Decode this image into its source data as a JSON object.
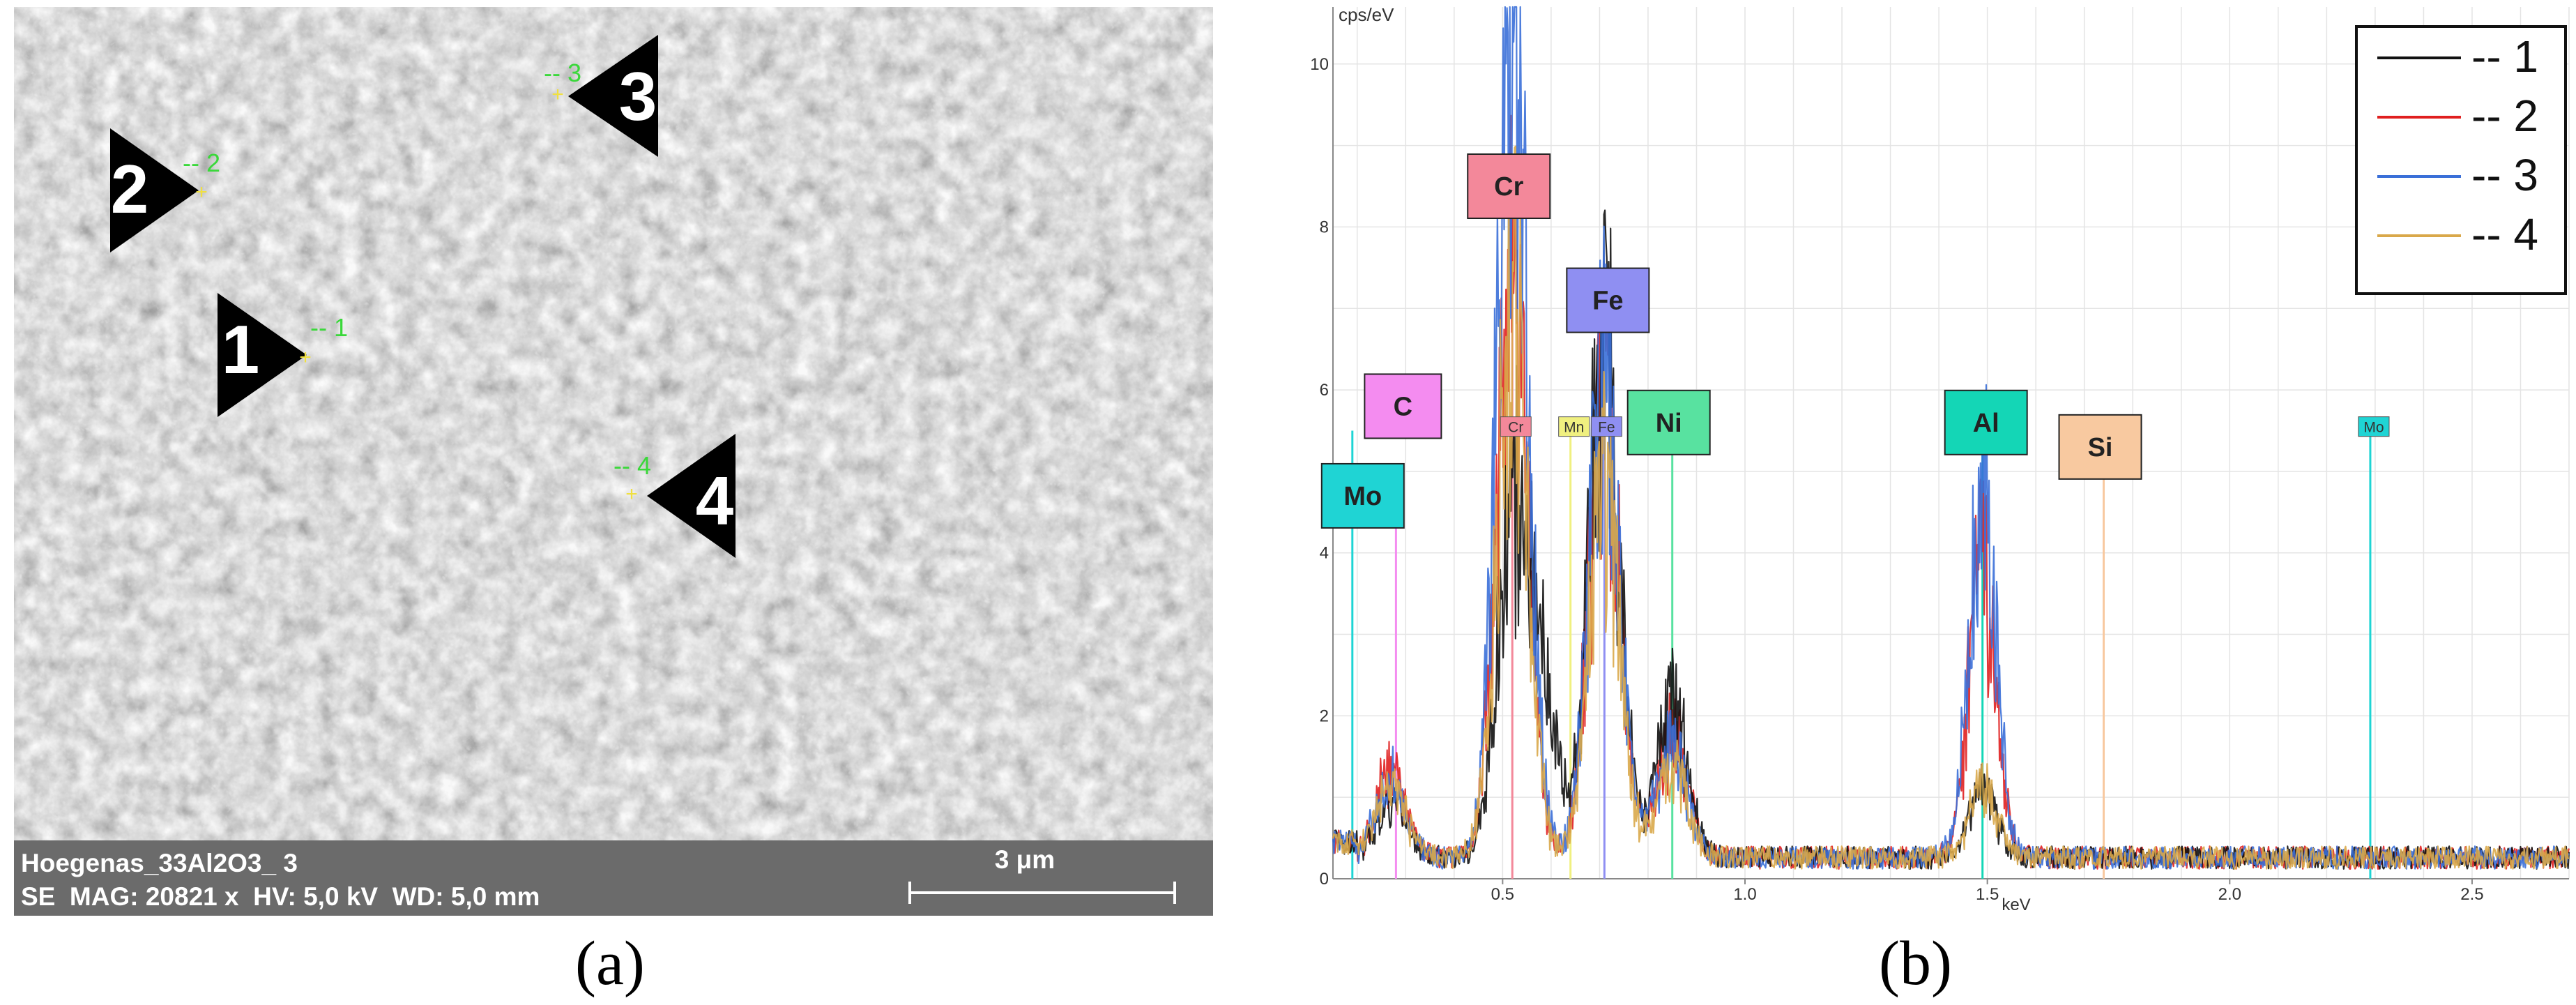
{
  "sem_panel": {
    "sample_name": "Hoegenas_33Al2O3_ 3",
    "info_line": "SE  MAG: 20821 x  HV: 5,0 kV  WD: 5,0 mm",
    "scalebar_label": "3 μm",
    "markers": [
      {
        "label": "1",
        "tag": "-- 1"
      },
      {
        "label": "2",
        "tag": "-- 2"
      },
      {
        "label": "3",
        "tag": "-- 3"
      },
      {
        "label": "4",
        "tag": "-- 4"
      }
    ]
  },
  "captions": {
    "a": "(a)",
    "b": "(b)"
  },
  "colors": {
    "s1": "#111111",
    "s2": "#e02020",
    "s3": "#3a6fd8",
    "s4": "#d9a84a",
    "Cr": "#f3889a",
    "Fe": "#8f8ff2",
    "Ni": "#58e2a0",
    "C": "#f48cf0",
    "Mo": "#1fd4d4",
    "Al": "#14d6b6",
    "Si": "#f8c9a0",
    "Mn": "#f0f080"
  },
  "chart_data": {
    "type": "line",
    "title": "",
    "xlabel": "keV",
    "ylabel": "cps/eV",
    "xlim": [
      0.15,
      2.7
    ],
    "ylim": [
      0,
      10.7
    ],
    "xticks": [
      "0.5",
      "1.0",
      "1.5",
      "2.0",
      "2.5"
    ],
    "yticks": [
      "0",
      "2",
      "4",
      "6",
      "8",
      "10"
    ],
    "grid": true,
    "legend_position": "top-right",
    "series": [
      {
        "name": "-- 1",
        "color": "#111111",
        "peaks": [
          [
            0.27,
            0.75
          ],
          [
            0.52,
            4.3
          ],
          [
            0.58,
            2.3
          ],
          [
            0.71,
            6.7
          ],
          [
            0.85,
            2.0
          ],
          [
            1.49,
            0.95
          ]
        ]
      },
      {
        "name": "-- 2",
        "color": "#e02020",
        "peaks": [
          [
            0.27,
            1.1
          ],
          [
            0.52,
            7.6
          ],
          [
            0.71,
            6.0
          ],
          [
            0.85,
            1.6
          ],
          [
            1.49,
            3.9
          ]
        ]
      },
      {
        "name": "-- 3",
        "color": "#3a6fd8",
        "peaks": [
          [
            0.27,
            1.0
          ],
          [
            0.52,
            10.7
          ],
          [
            0.71,
            6.3
          ],
          [
            0.85,
            1.5
          ],
          [
            1.49,
            4.9
          ]
        ]
      },
      {
        "name": "-- 4",
        "color": "#d9a84a",
        "peaks": [
          [
            0.27,
            1.0
          ],
          [
            0.52,
            7.3
          ],
          [
            0.71,
            4.8
          ],
          [
            0.85,
            1.2
          ],
          [
            1.49,
            1.0
          ]
        ]
      }
    ],
    "element_lines": [
      {
        "name": "Cr",
        "keV": 0.52,
        "box_label": "Cr",
        "small_label": "Cr"
      },
      {
        "name": "Fe",
        "keV": 0.71,
        "box_label": "Fe",
        "small_label": "Fe"
      },
      {
        "name": "Mn",
        "keV": 0.64,
        "box_label": "",
        "small_label": "Mn"
      },
      {
        "name": "C",
        "keV": 0.28,
        "box_label": "C",
        "small_label": ""
      },
      {
        "name": "Mo",
        "keV": 0.19,
        "box_label": "Mo",
        "small_label": "M"
      },
      {
        "name": "Ni",
        "keV": 0.85,
        "box_label": "Ni",
        "small_label": ""
      },
      {
        "name": "Al",
        "keV": 1.49,
        "box_label": "Al",
        "small_label": ""
      },
      {
        "name": "Si",
        "keV": 1.74,
        "box_label": "Si",
        "small_label": ""
      },
      {
        "name": "Mo",
        "keV": 2.29,
        "box_label": "",
        "small_label": "Mo"
      }
    ]
  }
}
